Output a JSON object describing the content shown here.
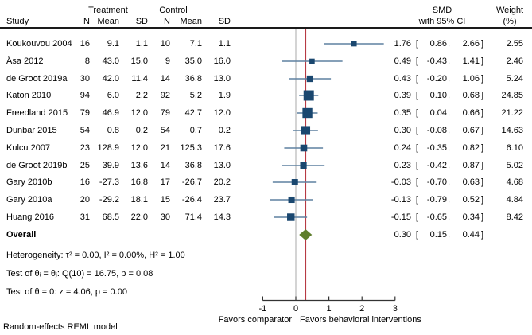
{
  "header": {
    "study": "Study",
    "treatment_group": "Treatment",
    "control_group": "Control",
    "n": "N",
    "mean": "Mean",
    "sd": "SD",
    "smd_line1": "SMD",
    "smd_line2": "with 95% CI",
    "weight_line1": "Weight",
    "weight_line2": "(%)"
  },
  "chart_data": {
    "type": "scatter",
    "subtype": "forest-plot",
    "studies": [
      {
        "study": "Koukouvou 2004",
        "t_n": "16",
        "t_mean": "9.1",
        "t_sd": "1.1",
        "c_n": "10",
        "c_mean": "7.1",
        "c_sd": "1.1",
        "smd": 1.76,
        "ci_low": 0.86,
        "ci_high": 2.66,
        "weight": 2.55,
        "smd_label": "1.76",
        "ci_low_label": "0.86",
        "ci_high_label": "2.66",
        "weight_label": "2.55"
      },
      {
        "study": "Åsa 2012",
        "t_n": "8",
        "t_mean": "43.0",
        "t_sd": "15.0",
        "c_n": "9",
        "c_mean": "35.0",
        "c_sd": "16.0",
        "smd": 0.49,
        "ci_low": -0.43,
        "ci_high": 1.41,
        "weight": 2.46,
        "smd_label": "0.49",
        "ci_low_label": "-0.43",
        "ci_high_label": "1.41",
        "weight_label": "2.46"
      },
      {
        "study": "de Groot 2019a",
        "t_n": "30",
        "t_mean": "42.0",
        "t_sd": "11.4",
        "c_n": "14",
        "c_mean": "36.8",
        "c_sd": "13.0",
        "smd": 0.43,
        "ci_low": -0.2,
        "ci_high": 1.06,
        "weight": 5.24,
        "smd_label": "0.43",
        "ci_low_label": "-0.20",
        "ci_high_label": "1.06",
        "weight_label": "5.24"
      },
      {
        "study": "Katon 2010",
        "t_n": "94",
        "t_mean": "6.0",
        "t_sd": "2.2",
        "c_n": "92",
        "c_mean": "5.2",
        "c_sd": "1.9",
        "smd": 0.39,
        "ci_low": 0.1,
        "ci_high": 0.68,
        "weight": 24.85,
        "smd_label": "0.39",
        "ci_low_label": "0.10",
        "ci_high_label": "0.68",
        "weight_label": "24.85"
      },
      {
        "study": "Freedland 2015",
        "t_n": "79",
        "t_mean": "46.9",
        "t_sd": "12.0",
        "c_n": "79",
        "c_mean": "42.7",
        "c_sd": "12.0",
        "smd": 0.35,
        "ci_low": 0.04,
        "ci_high": 0.66,
        "weight": 21.22,
        "smd_label": "0.35",
        "ci_low_label": "0.04",
        "ci_high_label": "0.66",
        "weight_label": "21.22"
      },
      {
        "study": "Dunbar 2015",
        "t_n": "54",
        "t_mean": "0.8",
        "t_sd": "0.2",
        "c_n": "54",
        "c_mean": "0.7",
        "c_sd": "0.2",
        "smd": 0.3,
        "ci_low": -0.08,
        "ci_high": 0.67,
        "weight": 14.63,
        "smd_label": "0.30",
        "ci_low_label": "-0.08",
        "ci_high_label": "0.67",
        "weight_label": "14.63"
      },
      {
        "study": "Kulcu 2007",
        "t_n": "23",
        "t_mean": "128.9",
        "t_sd": "12.0",
        "c_n": "21",
        "c_mean": "125.3",
        "c_sd": "17.6",
        "smd": 0.24,
        "ci_low": -0.35,
        "ci_high": 0.82,
        "weight": 6.1,
        "smd_label": "0.24",
        "ci_low_label": "-0.35",
        "ci_high_label": "0.82",
        "weight_label": "6.10"
      },
      {
        "study": "de Groot 2019b",
        "t_n": "25",
        "t_mean": "39.9",
        "t_sd": "13.6",
        "c_n": "14",
        "c_mean": "36.8",
        "c_sd": "13.0",
        "smd": 0.23,
        "ci_low": -0.42,
        "ci_high": 0.87,
        "weight": 5.02,
        "smd_label": "0.23",
        "ci_low_label": "-0.42",
        "ci_high_label": "0.87",
        "weight_label": "5.02"
      },
      {
        "study": "Gary 2010b",
        "t_n": "16",
        "t_mean": "-27.3",
        "t_sd": "16.8",
        "c_n": "17",
        "c_mean": "-26.7",
        "c_sd": "20.2",
        "smd": -0.03,
        "ci_low": -0.7,
        "ci_high": 0.63,
        "weight": 4.68,
        "smd_label": "-0.03",
        "ci_low_label": "-0.70",
        "ci_high_label": "0.63",
        "weight_label": "4.68"
      },
      {
        "study": "Gary 2010a",
        "t_n": "20",
        "t_mean": "-29.2",
        "t_sd": "18.1",
        "c_n": "15",
        "c_mean": "-26.4",
        "c_sd": "23.7",
        "smd": -0.13,
        "ci_low": -0.79,
        "ci_high": 0.52,
        "weight": 4.84,
        "smd_label": "-0.13",
        "ci_low_label": "-0.79",
        "ci_high_label": "0.52",
        "weight_label": "4.84"
      },
      {
        "study": "Huang 2016",
        "t_n": "31",
        "t_mean": "68.5",
        "t_sd": "22.0",
        "c_n": "30",
        "c_mean": "71.4",
        "c_sd": "14.3",
        "smd": -0.15,
        "ci_low": -0.65,
        "ci_high": 0.34,
        "weight": 8.42,
        "smd_label": "-0.15",
        "ci_low_label": "-0.65",
        "ci_high_label": "0.34",
        "weight_label": "8.42"
      }
    ],
    "overall": {
      "label": "Overall",
      "smd": 0.3,
      "ci_low": 0.15,
      "ci_high": 0.44,
      "smd_label": "0.30",
      "ci_low_label": "0.15",
      "ci_high_label": "0.44"
    },
    "axis": {
      "min": -1,
      "max": 3,
      "tick_values": [
        -1,
        0,
        1,
        2,
        3
      ],
      "tick_labels": [
        "-1",
        "0",
        "1",
        "2",
        "3"
      ],
      "zero_ref": 0,
      "overall_ref": 0.3,
      "left_label": "Favors comparator",
      "right_label": "Favors behavioral interventions"
    },
    "colors": {
      "marker": "#1a476f",
      "ci_line": "#5f81a0",
      "zero_line": "#a8a8a8",
      "ref_line": "#b73a44",
      "diamond": "#5e7e2c",
      "axis": "#333333"
    }
  },
  "footnotes": {
    "heterogeneity": "Heterogeneity: τ² = 0.00, I² = 0.00%, H² = 1.00",
    "test_groups": "Test of θᵢ = θⱼ: Q(10) = 16.75, p = 0.08",
    "test_zero": "Test of θ = 0: z = 4.06, p = 0.00",
    "model": "Random-effects REML model"
  }
}
